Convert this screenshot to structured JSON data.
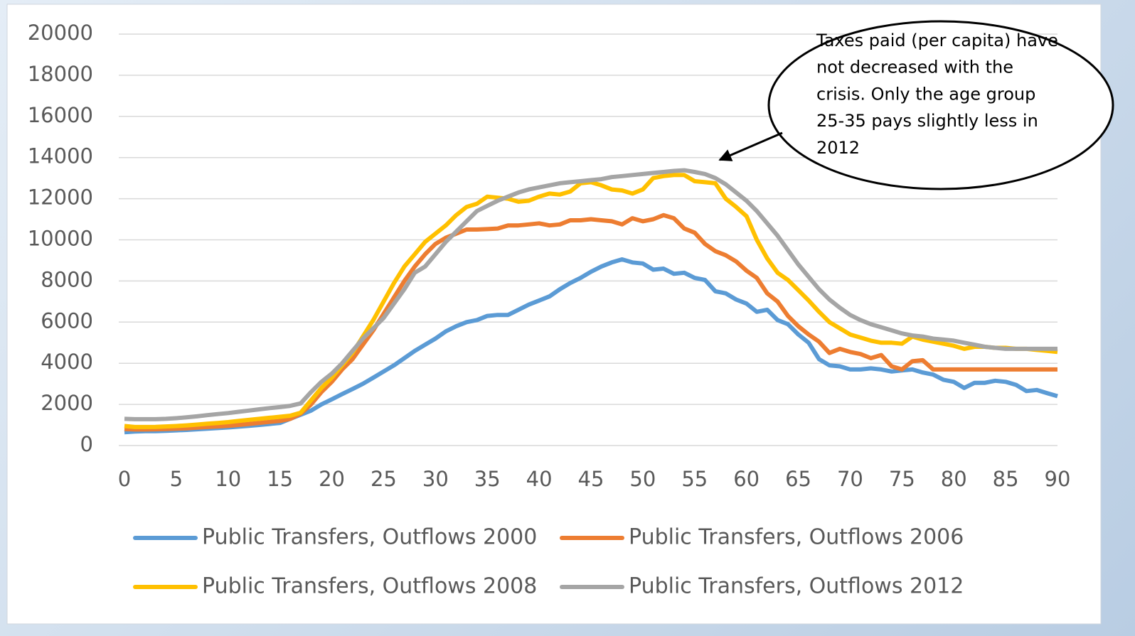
{
  "chart_data": {
    "type": "line",
    "x": [
      0,
      1,
      2,
      3,
      4,
      5,
      6,
      7,
      8,
      9,
      10,
      11,
      12,
      13,
      14,
      15,
      16,
      17,
      18,
      19,
      20,
      21,
      22,
      23,
      24,
      25,
      26,
      27,
      28,
      29,
      30,
      31,
      32,
      33,
      34,
      35,
      36,
      37,
      38,
      39,
      40,
      41,
      42,
      43,
      44,
      45,
      46,
      47,
      48,
      49,
      50,
      51,
      52,
      53,
      54,
      55,
      56,
      57,
      58,
      59,
      60,
      61,
      62,
      63,
      64,
      65,
      66,
      67,
      68,
      69,
      70,
      71,
      72,
      73,
      74,
      75,
      76,
      77,
      78,
      79,
      80,
      81,
      82,
      83,
      84,
      85,
      86,
      87,
      88,
      89,
      90
    ],
    "series": [
      {
        "name": "Public Transfers, Outflows 2000",
        "color": "#5b9bd5",
        "values": [
          650,
          680,
          700,
          700,
          720,
          740,
          760,
          790,
          820,
          850,
          880,
          920,
          960,
          1000,
          1050,
          1100,
          1300,
          1500,
          1700,
          2000,
          2250,
          2500,
          2750,
          3000,
          3300,
          3600,
          3900,
          4250,
          4600,
          4900,
          5200,
          5550,
          5800,
          6000,
          6100,
          6300,
          6350,
          6350,
          6600,
          6850,
          7050,
          7250,
          7600,
          7900,
          8150,
          8450,
          8700,
          8900,
          9050,
          8900,
          8850,
          8550,
          8600,
          8350,
          8400,
          8150,
          8050,
          7500,
          7400,
          7100,
          6900,
          6500,
          6600,
          6100,
          5900,
          5400,
          5000,
          4200,
          3900,
          3850,
          3700,
          3700,
          3750,
          3700,
          3600,
          3650,
          3700,
          3550,
          3450,
          3200,
          3100,
          2800,
          3050,
          3050,
          3150,
          3100,
          2950,
          2650,
          2700,
          2550,
          2400
        ]
      },
      {
        "name": "Public Transfers, Outflows 2006",
        "color": "#ed7d31",
        "values": [
          800,
          780,
          780,
          790,
          800,
          820,
          840,
          870,
          900,
          930,
          960,
          1000,
          1050,
          1100,
          1150,
          1200,
          1300,
          1550,
          2000,
          2600,
          3100,
          3700,
          4200,
          4900,
          5600,
          6400,
          7200,
          8000,
          8700,
          9300,
          9800,
          10100,
          10300,
          10500,
          10500,
          10520,
          10550,
          10700,
          10700,
          10750,
          10800,
          10700,
          10750,
          10950,
          10950,
          11000,
          10950,
          10900,
          10750,
          11050,
          10900,
          11000,
          11200,
          11050,
          10550,
          10350,
          9800,
          9450,
          9250,
          8950,
          8500,
          8150,
          7400,
          7000,
          6300,
          5800,
          5400,
          5050,
          4500,
          4700,
          4550,
          4450,
          4250,
          4400,
          3850,
          3700,
          4100,
          4150,
          3700,
          3700,
          3700,
          3700,
          3700,
          3700,
          3700,
          3700,
          3700,
          3700,
          3700,
          3700,
          3700
        ]
      },
      {
        "name": "Public Transfers, Outflows 2008",
        "color": "#ffc000",
        "values": [
          950,
          900,
          900,
          910,
          930,
          950,
          980,
          1020,
          1060,
          1100,
          1140,
          1200,
          1250,
          1300,
          1350,
          1400,
          1450,
          1600,
          2200,
          2800,
          3300,
          3900,
          4500,
          5300,
          6100,
          7000,
          7900,
          8700,
          9300,
          9900,
          10300,
          10700,
          11200,
          11600,
          11750,
          12100,
          12050,
          12000,
          11850,
          11900,
          12100,
          12250,
          12200,
          12350,
          12750,
          12800,
          12650,
          12450,
          12400,
          12250,
          12450,
          13000,
          13100,
          13150,
          13150,
          12850,
          12800,
          12750,
          12000,
          11600,
          11150,
          10000,
          9100,
          8400,
          8050,
          7550,
          7050,
          6500,
          6000,
          5700,
          5400,
          5250,
          5100,
          5000,
          5000,
          4950,
          5300,
          5150,
          5050,
          4950,
          4850,
          4700,
          4800,
          4800,
          4750,
          4750,
          4700,
          4700,
          4650,
          4600,
          4550
        ]
      },
      {
        "name": "Public Transfers, Outflows 2012",
        "color": "#a5a5a5",
        "values": [
          1300,
          1280,
          1280,
          1280,
          1300,
          1330,
          1370,
          1420,
          1480,
          1530,
          1580,
          1640,
          1700,
          1760,
          1820,
          1870,
          1930,
          2050,
          2600,
          3100,
          3500,
          4000,
          4600,
          5200,
          5700,
          6200,
          6900,
          7600,
          8400,
          8700,
          9300,
          9900,
          10400,
          10900,
          11400,
          11650,
          11900,
          12100,
          12300,
          12450,
          12550,
          12650,
          12750,
          12800,
          12850,
          12900,
          12950,
          13050,
          13100,
          13150,
          13200,
          13250,
          13300,
          13350,
          13380,
          13300,
          13200,
          13000,
          12700,
          12300,
          11900,
          11400,
          10800,
          10200,
          9500,
          8800,
          8200,
          7600,
          7100,
          6700,
          6350,
          6100,
          5900,
          5750,
          5600,
          5450,
          5350,
          5300,
          5200,
          5150,
          5100,
          5000,
          4900,
          4800,
          4750,
          4700,
          4700,
          4700,
          4700,
          4700,
          4700
        ]
      }
    ],
    "xlim": [
      0,
      90
    ],
    "xticks": [
      0,
      5,
      10,
      15,
      20,
      25,
      30,
      35,
      40,
      45,
      50,
      55,
      60,
      65,
      70,
      75,
      80,
      85,
      90
    ],
    "ylim": [
      0,
      20000
    ],
    "yticks": [
      0,
      2000,
      4000,
      6000,
      8000,
      10000,
      12000,
      14000,
      16000,
      18000,
      20000
    ],
    "grid": true,
    "legend": "bottom",
    "annotation": [
      "Taxes paid (per capita) have",
      "not decreased with the",
      "crisis. Only the age group",
      "25-35 pays slightly less in",
      "2012"
    ]
  }
}
